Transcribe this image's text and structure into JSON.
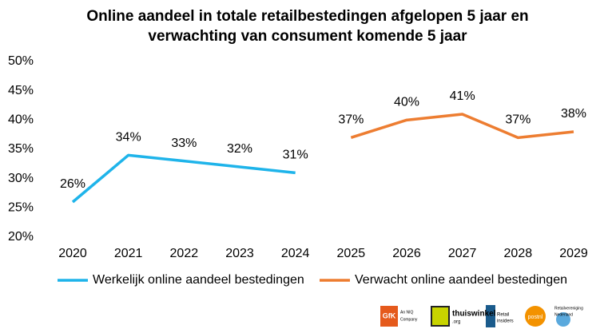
{
  "chart_data": {
    "type": "line",
    "title": [
      "Online aandeel in totale retailbestedingen afgelopen 5 jaar en",
      "verwachting van consument komende 5 jaar"
    ],
    "categories": [
      "2020",
      "2021",
      "2022",
      "2023",
      "2024",
      "2025",
      "2026",
      "2027",
      "2028",
      "2029"
    ],
    "series": [
      {
        "name": "Werkelijk online aandeel bestedingen",
        "color": "#1fb4ea",
        "values": [
          26,
          34,
          33,
          32,
          31,
          null,
          null,
          null,
          null,
          null
        ],
        "value_labels": [
          "26%",
          "34%",
          "33%",
          "32%",
          "31%",
          null,
          null,
          null,
          null,
          null
        ]
      },
      {
        "name": "Verwacht online aandeel bestedingen",
        "color": "#ed7d31",
        "values": [
          null,
          null,
          null,
          null,
          null,
          37,
          40,
          41,
          37,
          38
        ],
        "value_labels": [
          null,
          null,
          null,
          null,
          null,
          "37%",
          "40%",
          "41%",
          "37%",
          "38%"
        ]
      }
    ],
    "ylim": [
      20,
      50
    ],
    "yticks": [
      {
        "value": 20,
        "label": "20%"
      },
      {
        "value": 25,
        "label": "25%"
      },
      {
        "value": 30,
        "label": "30%"
      },
      {
        "value": 35,
        "label": "35%"
      },
      {
        "value": 40,
        "label": "40%"
      },
      {
        "value": 45,
        "label": "45%"
      },
      {
        "value": 50,
        "label": "50%"
      }
    ],
    "grid": false,
    "legend": "bottom"
  },
  "logos": [
    "GfK",
    "An NIQ",
    "Company",
    "thuiswinkel",
    ".org",
    "Retail",
    "insiders",
    "postnl",
    "Retailvereniging",
    "Nederland"
  ]
}
